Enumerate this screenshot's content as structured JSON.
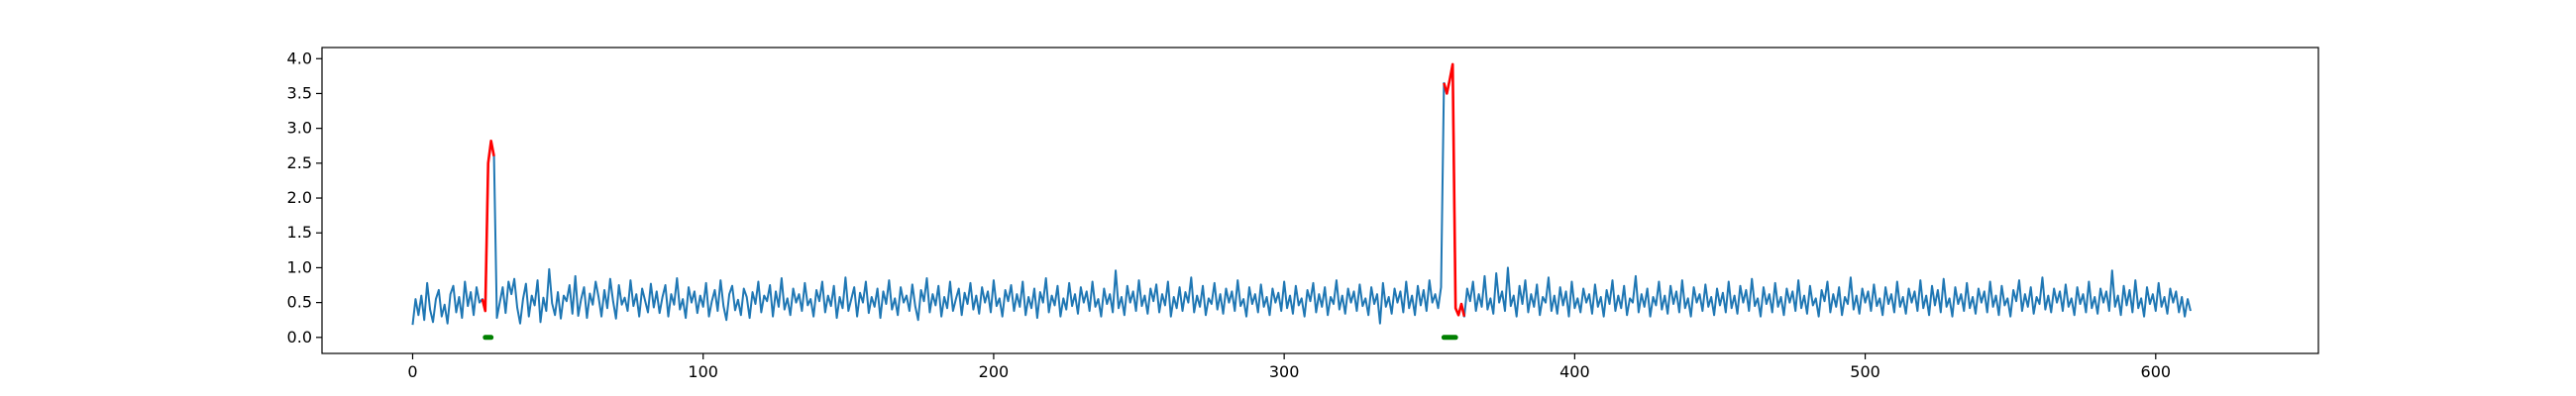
{
  "chart_data": {
    "type": "line",
    "title": "",
    "xlabel": "",
    "ylabel": "",
    "xlim": [
      -31.2,
      656
    ],
    "ylim": [
      -0.23,
      4.16
    ],
    "x_ticks": [
      0,
      100,
      200,
      300,
      400,
      500,
      600
    ],
    "y_ticks": [
      0.0,
      0.5,
      1.0,
      1.5,
      2.0,
      2.5,
      3.0,
      3.5,
      4.0
    ],
    "x_tick_labels": [
      "0",
      "100",
      "200",
      "300",
      "400",
      "500",
      "600"
    ],
    "y_tick_labels": [
      "0.0",
      "0.5",
      "1.0",
      "1.5",
      "2.0",
      "2.5",
      "3.0",
      "3.5",
      "4.0"
    ],
    "grid": false,
    "legend": "none",
    "colors": {
      "series": "#1f77b4",
      "anomaly": "#ff0000",
      "marker": "#008000"
    },
    "series": {
      "x_start": 0,
      "x_step": 1,
      "y": [
        0.18,
        0.55,
        0.32,
        0.6,
        0.25,
        0.78,
        0.4,
        0.22,
        0.55,
        0.68,
        0.3,
        0.47,
        0.2,
        0.62,
        0.74,
        0.36,
        0.58,
        0.28,
        0.8,
        0.45,
        0.65,
        0.32,
        0.72,
        0.5,
        0.55,
        0.38,
        2.5,
        2.82,
        2.6,
        0.28,
        0.5,
        0.72,
        0.35,
        0.8,
        0.62,
        0.84,
        0.43,
        0.2,
        0.55,
        0.77,
        0.3,
        0.6,
        0.46,
        0.82,
        0.22,
        0.57,
        0.38,
        0.98,
        0.49,
        0.32,
        0.65,
        0.27,
        0.6,
        0.52,
        0.75,
        0.34,
        0.88,
        0.31,
        0.55,
        0.72,
        0.28,
        0.63,
        0.47,
        0.8,
        0.58,
        0.3,
        0.68,
        0.42,
        0.84,
        0.52,
        0.27,
        0.75,
        0.47,
        0.57,
        0.38,
        0.82,
        0.45,
        0.62,
        0.3,
        0.7,
        0.53,
        0.36,
        0.77,
        0.43,
        0.66,
        0.35,
        0.58,
        0.75,
        0.3,
        0.62,
        0.47,
        0.85,
        0.4,
        0.55,
        0.28,
        0.72,
        0.5,
        0.66,
        0.35,
        0.6,
        0.44,
        0.78,
        0.3,
        0.52,
        0.68,
        0.38,
        0.82,
        0.45,
        0.25,
        0.62,
        0.74,
        0.39,
        0.54,
        0.32,
        0.7,
        0.58,
        0.28,
        0.65,
        0.48,
        0.8,
        0.36,
        0.6,
        0.52,
        0.75,
        0.3,
        0.66,
        0.44,
        0.85,
        0.4,
        0.56,
        0.32,
        0.7,
        0.5,
        0.62,
        0.38,
        0.78,
        0.46,
        0.55,
        0.3,
        0.68,
        0.52,
        0.8,
        0.36,
        0.6,
        0.45,
        0.74,
        0.28,
        0.58,
        0.42,
        0.86,
        0.38,
        0.55,
        0.72,
        0.3,
        0.64,
        0.5,
        0.8,
        0.35,
        0.58,
        0.44,
        0.7,
        0.28,
        0.66,
        0.48,
        0.82,
        0.4,
        0.56,
        0.32,
        0.72,
        0.5,
        0.6,
        0.38,
        0.76,
        0.45,
        0.25,
        0.68,
        0.52,
        0.85,
        0.36,
        0.62,
        0.46,
        0.74,
        0.3,
        0.58,
        0.42,
        0.8,
        0.38,
        0.55,
        0.7,
        0.32,
        0.64,
        0.48,
        0.78,
        0.4,
        0.6,
        0.34,
        0.72,
        0.5,
        0.66,
        0.36,
        0.82,
        0.45,
        0.56,
        0.3,
        0.68,
        0.52,
        0.75,
        0.38,
        0.62,
        0.44,
        0.8,
        0.32,
        0.58,
        0.42,
        0.7,
        0.28,
        0.65,
        0.5,
        0.85,
        0.36,
        0.6,
        0.46,
        0.74,
        0.3,
        0.56,
        0.4,
        0.78,
        0.45,
        0.62,
        0.34,
        0.72,
        0.5,
        0.66,
        0.38,
        0.8,
        0.44,
        0.55,
        0.3,
        0.7,
        0.48,
        0.62,
        0.36,
        0.96,
        0.42,
        0.58,
        0.32,
        0.74,
        0.5,
        0.66,
        0.38,
        0.82,
        0.45,
        0.6,
        0.34,
        0.7,
        0.52,
        0.76,
        0.36,
        0.62,
        0.46,
        0.8,
        0.3,
        0.58,
        0.42,
        0.72,
        0.38,
        0.65,
        0.5,
        0.86,
        0.36,
        0.6,
        0.44,
        0.74,
        0.32,
        0.56,
        0.48,
        0.78,
        0.4,
        0.62,
        0.34,
        0.7,
        0.5,
        0.66,
        0.38,
        0.82,
        0.45,
        0.55,
        0.3,
        0.72,
        0.48,
        0.62,
        0.36,
        0.76,
        0.44,
        0.58,
        0.32,
        0.7,
        0.5,
        0.64,
        0.38,
        0.8,
        0.42,
        0.6,
        0.34,
        0.74,
        0.46,
        0.56,
        0.3,
        0.68,
        0.52,
        0.78,
        0.36,
        0.62,
        0.44,
        0.72,
        0.32,
        0.58,
        0.48,
        0.82,
        0.4,
        0.6,
        0.34,
        0.7,
        0.5,
        0.66,
        0.38,
        0.76,
        0.45,
        0.56,
        0.32,
        0.72,
        0.48,
        0.62,
        0.2,
        0.78,
        0.44,
        0.58,
        0.34,
        0.7,
        0.5,
        0.66,
        0.36,
        0.8,
        0.42,
        0.6,
        0.32,
        0.74,
        0.46,
        0.68,
        0.38,
        0.82,
        0.5,
        0.62,
        0.42,
        0.72,
        3.65,
        3.5,
        3.7,
        3.92,
        0.42,
        0.32,
        0.48,
        0.3,
        0.7,
        0.52,
        0.8,
        0.38,
        0.62,
        0.44,
        0.88,
        0.4,
        0.56,
        0.34,
        0.92,
        0.5,
        0.66,
        0.38,
        1.0,
        0.45,
        0.6,
        0.3,
        0.74,
        0.48,
        0.82,
        0.36,
        0.62,
        0.44,
        0.76,
        0.32,
        0.58,
        0.5,
        0.86,
        0.38,
        0.6,
        0.34,
        0.72,
        0.46,
        0.66,
        0.3,
        0.8,
        0.42,
        0.56,
        0.36,
        0.7,
        0.5,
        0.62,
        0.34,
        0.76,
        0.44,
        0.58,
        0.3,
        0.68,
        0.48,
        0.82,
        0.38,
        0.6,
        0.42,
        0.74,
        0.32,
        0.56,
        0.5,
        0.88,
        0.36,
        0.62,
        0.44,
        0.7,
        0.3,
        0.58,
        0.46,
        0.8,
        0.4,
        0.6,
        0.34,
        0.74,
        0.48,
        0.66,
        0.36,
        0.82,
        0.42,
        0.56,
        0.3,
        0.72,
        0.5,
        0.62,
        0.38,
        0.76,
        0.44,
        0.58,
        0.32,
        0.7,
        0.46,
        0.64,
        0.36,
        0.8,
        0.42,
        0.6,
        0.34,
        0.74,
        0.5,
        0.68,
        0.38,
        0.84,
        0.45,
        0.56,
        0.3,
        0.72,
        0.48,
        0.62,
        0.36,
        0.78,
        0.44,
        0.58,
        0.32,
        0.7,
        0.5,
        0.66,
        0.38,
        0.82,
        0.42,
        0.6,
        0.34,
        0.74,
        0.46,
        0.56,
        0.3,
        0.68,
        0.52,
        0.8,
        0.36,
        0.62,
        0.44,
        0.72,
        0.32,
        0.58,
        0.48,
        0.86,
        0.4,
        0.6,
        0.34,
        0.7,
        0.5,
        0.66,
        0.38,
        0.76,
        0.45,
        0.56,
        0.32,
        0.72,
        0.48,
        0.62,
        0.36,
        0.8,
        0.44,
        0.58,
        0.34,
        0.7,
        0.5,
        0.66,
        0.38,
        0.82,
        0.42,
        0.6,
        0.32,
        0.74,
        0.46,
        0.68,
        0.36,
        0.84,
        0.44,
        0.56,
        0.3,
        0.72,
        0.48,
        0.62,
        0.38,
        0.78,
        0.42,
        0.58,
        0.34,
        0.7,
        0.5,
        0.66,
        0.36,
        0.8,
        0.44,
        0.6,
        0.32,
        0.74,
        0.46,
        0.56,
        0.3,
        0.68,
        0.52,
        0.82,
        0.38,
        0.62,
        0.44,
        0.72,
        0.34,
        0.58,
        0.48,
        0.86,
        0.4,
        0.6,
        0.36,
        0.7,
        0.5,
        0.66,
        0.38,
        0.76,
        0.44,
        0.56,
        0.32,
        0.72,
        0.48,
        0.62,
        0.36,
        0.8,
        0.42,
        0.58,
        0.34,
        0.7,
        0.5,
        0.66,
        0.38,
        0.96,
        0.44,
        0.6,
        0.32,
        0.74,
        0.46,
        0.68,
        0.36,
        0.82,
        0.42,
        0.56,
        0.3,
        0.72,
        0.48,
        0.62,
        0.38,
        0.78,
        0.44,
        0.58,
        0.34,
        0.7,
        0.5,
        0.66,
        0.36,
        0.58,
        0.3,
        0.55,
        0.38
      ]
    },
    "anomaly_segments": [
      {
        "start": 24,
        "end": 28
      },
      {
        "start": 355,
        "end": 362
      }
    ],
    "markers": [
      {
        "x_start": 25,
        "x_end": 27,
        "y": 0.0
      },
      {
        "x_start": 355,
        "x_end": 359,
        "y": 0.0
      }
    ]
  }
}
